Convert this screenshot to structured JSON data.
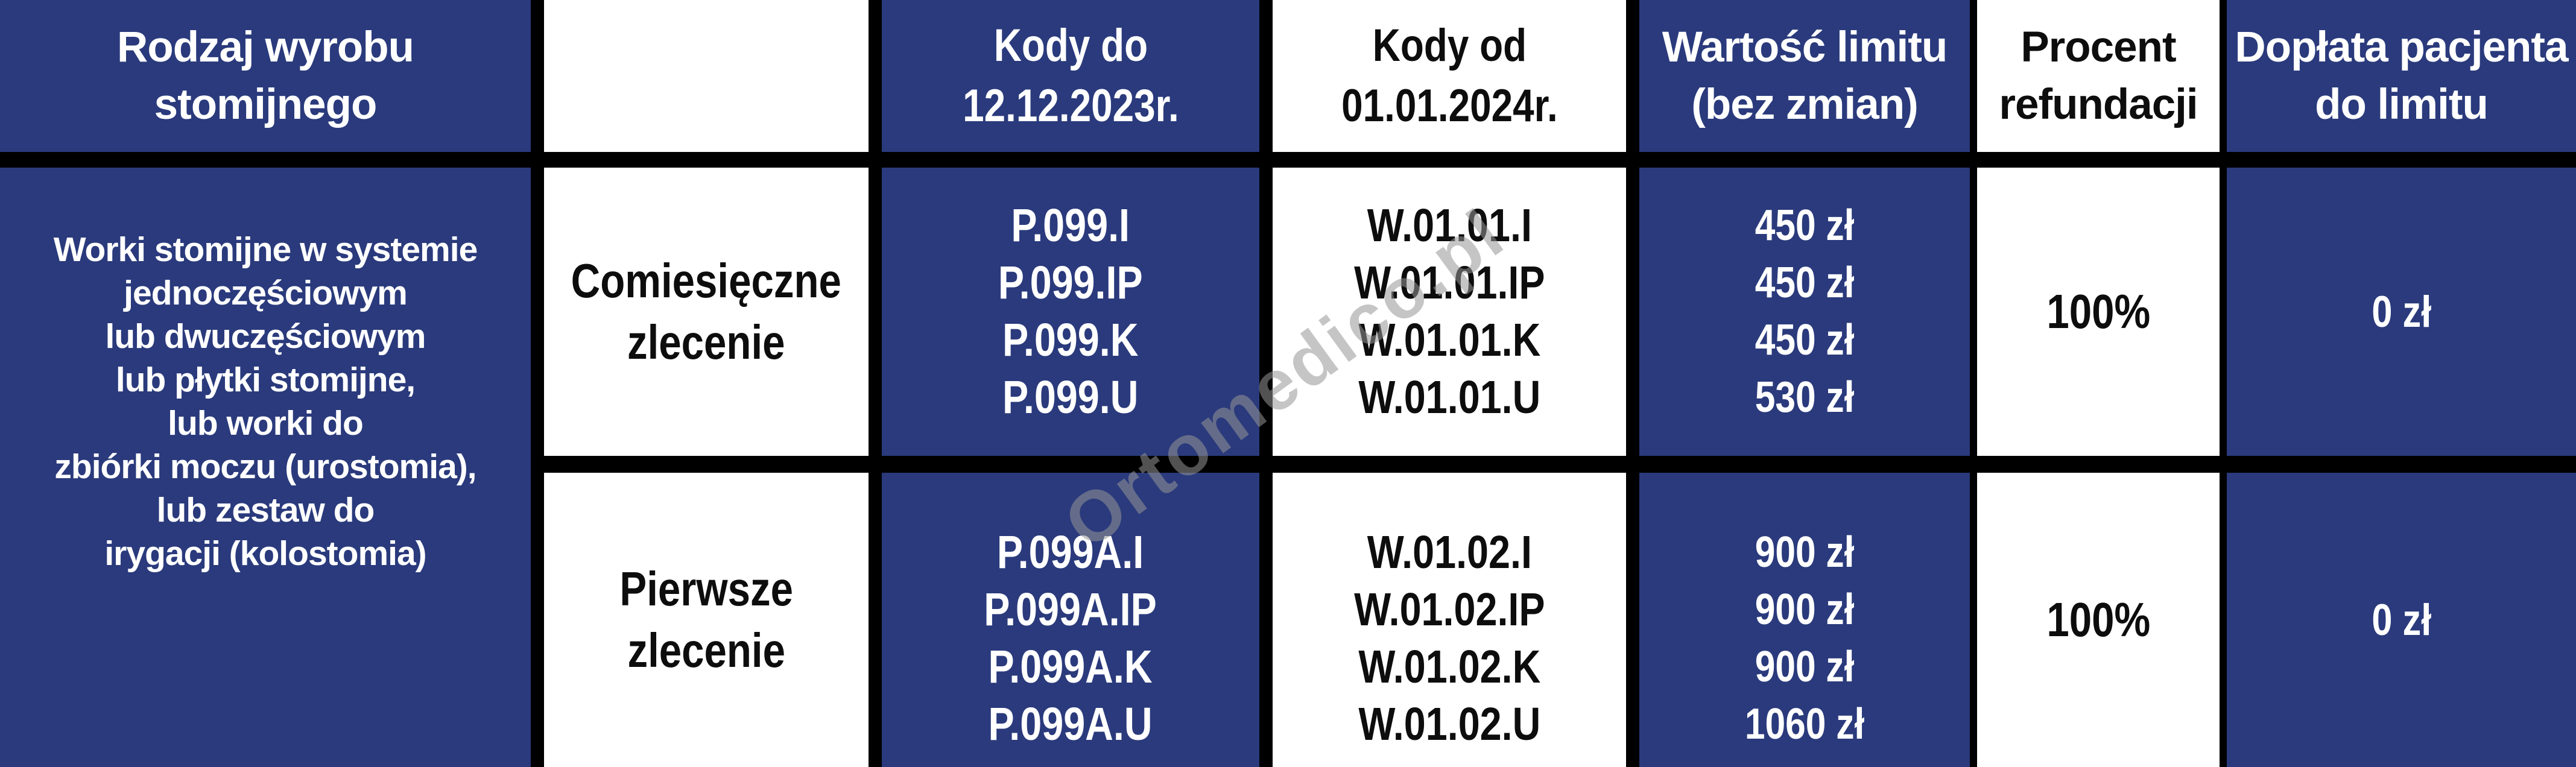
{
  "table": {
    "header": {
      "product_type": [
        "Rodzaj wyrobu",
        "stomijnego"
      ],
      "empty": "",
      "codes_old": [
        "Kody do",
        "12.12.2023r."
      ],
      "codes_new": [
        "Kody od",
        "01.01.2024r."
      ],
      "limit": [
        "Wartość limitu",
        "(bez zmian)"
      ],
      "percent": [
        "Procent",
        "refundacji"
      ],
      "copay": [
        "Dopłata pacjenta",
        "do limitu"
      ]
    },
    "product": {
      "lines": [
        "Worki stomijne w systemie",
        "jednoczęściowym",
        "lub dwuczęściowym",
        "lub płytki stomijne,",
        "lub worki do",
        "zbiórki moczu (urostomia),",
        "lub zestaw do",
        "irygacji (kolostomia)"
      ]
    },
    "rows": [
      {
        "order_type": [
          "Comiesięczne",
          "zlecenie"
        ],
        "codes_old": [
          "P.099.I",
          "P.099.IP",
          "P.099.K",
          "P.099.U"
        ],
        "codes_new": [
          "W.01.01.I",
          "W.01.01.IP",
          "W.01.01.K",
          "W.01.01.U"
        ],
        "limit_values": [
          "450 zł",
          "450 zł",
          "450 zł",
          "530 zł"
        ],
        "refund_percent": "100%",
        "patient_copay": "0 zł"
      },
      {
        "order_type": [
          "Pierwsze",
          "zlecenie"
        ],
        "codes_old": [
          "P.099A.I",
          "P.099A.IP",
          "P.099A.K",
          "P.099A.U"
        ],
        "codes_new": [
          "W.01.02.I",
          "W.01.02.IP",
          "W.01.02.K",
          "W.01.02.U"
        ],
        "limit_values": [
          "900 zł",
          "900 zł",
          "900 zł",
          "1060 zł"
        ],
        "refund_percent": "100%",
        "patient_copay": "0 zł"
      }
    ]
  },
  "watermark": "Ortomedico.pl",
  "colors": {
    "navy": "#2a3a7c",
    "white": "#ffffff",
    "ink": "#0d0d0d",
    "border": "#000000",
    "watermark": "#969696"
  }
}
